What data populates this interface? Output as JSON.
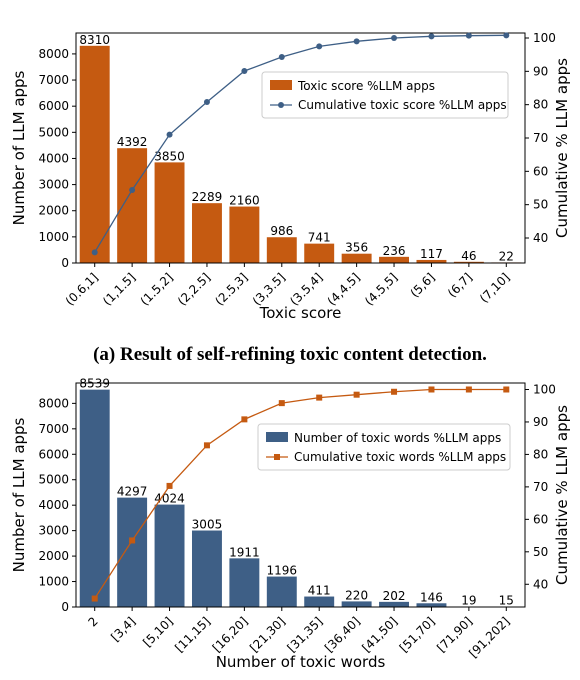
{
  "captions": {
    "a": "(a) Result of self-refining toxic content detection."
  },
  "chart_data": [
    {
      "type": "bar",
      "xlabel": "Toxic score",
      "ylabel": "Number of LLM apps",
      "ylabel_right": "Cumulative % LLM apps",
      "categories": [
        "(0.6,1]",
        "(1,1.5]",
        "(1.5,2]",
        "(2,2.5]",
        "(2.5,3]",
        "(3,3.5]",
        "(3.5,4]",
        "(4,4.5]",
        "(4.5,5]",
        "(5,6]",
        "(6,7]",
        "(7,10]"
      ],
      "values": [
        8310,
        4392,
        3850,
        2289,
        2160,
        986,
        741,
        356,
        236,
        117,
        46,
        22
      ],
      "line_values": [
        35.7,
        54.4,
        71.0,
        80.8,
        90.1,
        94.3,
        97.5,
        99.0,
        100.0,
        100.5,
        100.7,
        100.8
      ],
      "ylim": [
        0,
        8800
      ],
      "yticks": [
        0,
        1000,
        2000,
        3000,
        4000,
        5000,
        6000,
        7000,
        8000
      ],
      "y2lim": [
        32.5,
        101.5
      ],
      "y2ticks": [
        40,
        50,
        60,
        70,
        80,
        90,
        100
      ],
      "legend": [
        "Toxic score %LLM apps",
        "Cumulative toxic score %LLM apps"
      ],
      "legend_position": "center-right",
      "bar_color": "#c55a11",
      "line_color": "#3e5f86",
      "line_marker": "circle"
    },
    {
      "type": "bar",
      "xlabel": "Number of toxic words",
      "ylabel": "Number of LLM apps",
      "ylabel_right": "Cumulative % LLM apps",
      "categories": [
        "2",
        "[3,4]",
        "[5,10]",
        "[11,15]",
        "[16,20]",
        "[21,30]",
        "[31,35]",
        "[36,40]",
        "[41,50]",
        "[51,70]",
        "[71,90]",
        "[91,202]"
      ],
      "values": [
        8539,
        4297,
        4024,
        3005,
        1911,
        1196,
        411,
        220,
        202,
        146,
        19,
        15
      ],
      "line_values": [
        35.6,
        53.5,
        70.3,
        82.8,
        90.8,
        95.8,
        97.5,
        98.4,
        99.3,
        100.0,
        100.0,
        100.0
      ],
      "ylim": [
        0,
        8800
      ],
      "yticks": [
        0,
        1000,
        2000,
        3000,
        4000,
        5000,
        6000,
        7000,
        8000
      ],
      "y2lim": [
        33,
        102
      ],
      "y2ticks": [
        40,
        50,
        60,
        70,
        80,
        90,
        100
      ],
      "legend": [
        "Number of toxic words %LLM apps",
        "Cumulative toxic words %LLM apps"
      ],
      "legend_position": "center-right",
      "bar_color": "#3e5f86",
      "line_color": "#c55a11",
      "line_marker": "square"
    }
  ]
}
